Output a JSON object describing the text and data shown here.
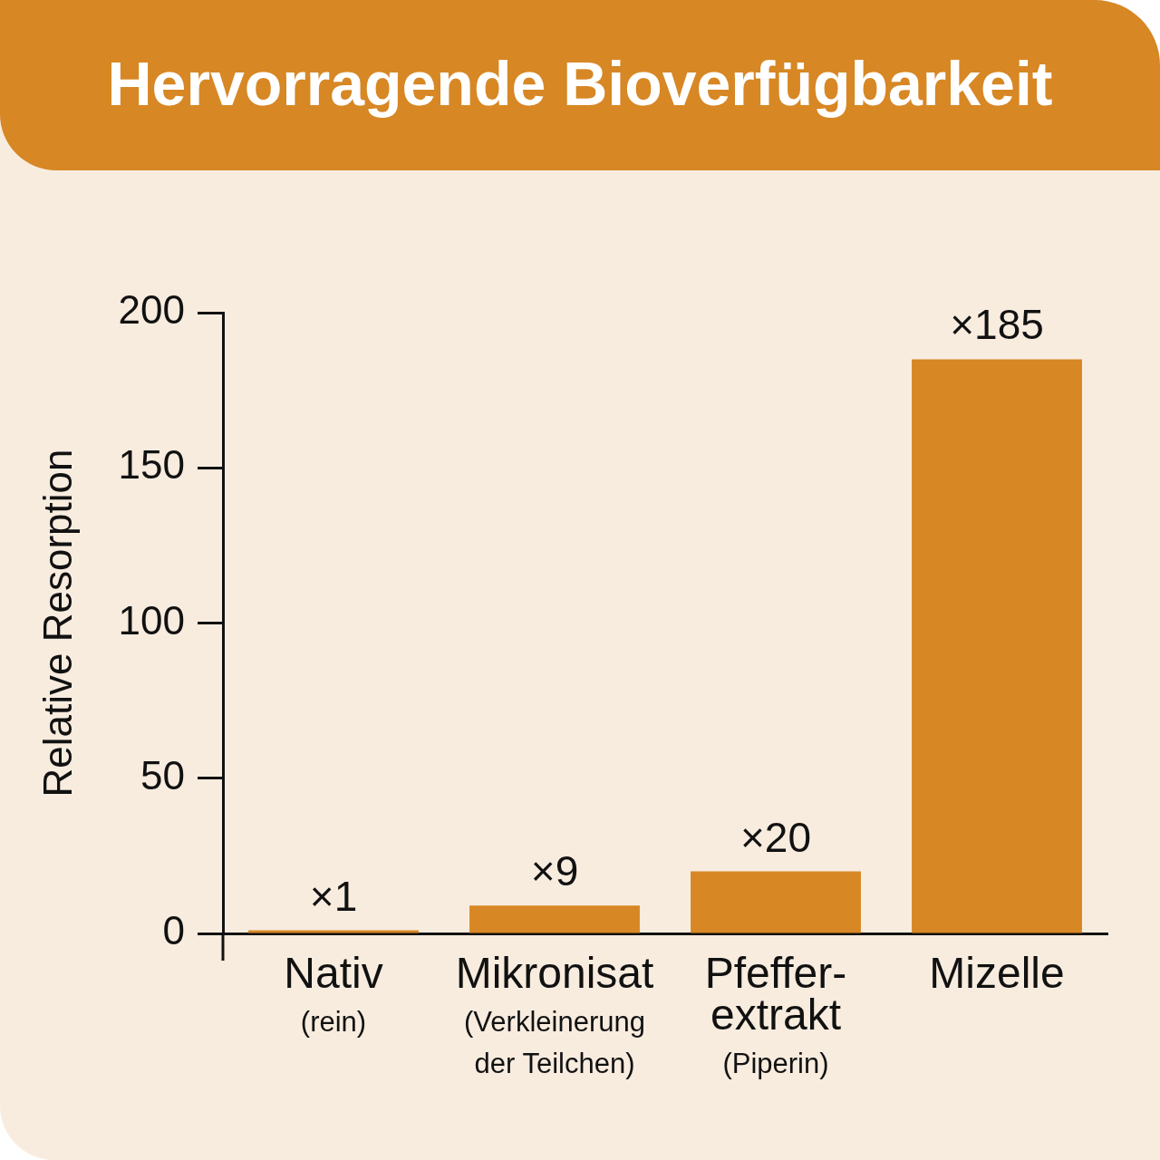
{
  "chart_data": {
    "type": "bar",
    "title": "Hervorragende Bioverfügbarkeit",
    "ylabel": "Relative Resorption",
    "categories": [
      "Nativ\n(rein)",
      "Mikronisat\n(Verkleinerung\nder Teilchen)",
      "Pfeffer-\nextrakt\n(Piperin)",
      "Mizelle"
    ],
    "values": [
      1,
      9,
      20,
      185
    ],
    "value_labels": [
      "×1",
      "×9",
      "×20",
      "×185"
    ],
    "color": "#d78724",
    "ylim": [
      0,
      200
    ],
    "yticks": [
      0,
      50,
      100,
      150,
      200
    ],
    "grid": false,
    "legend": false
  }
}
